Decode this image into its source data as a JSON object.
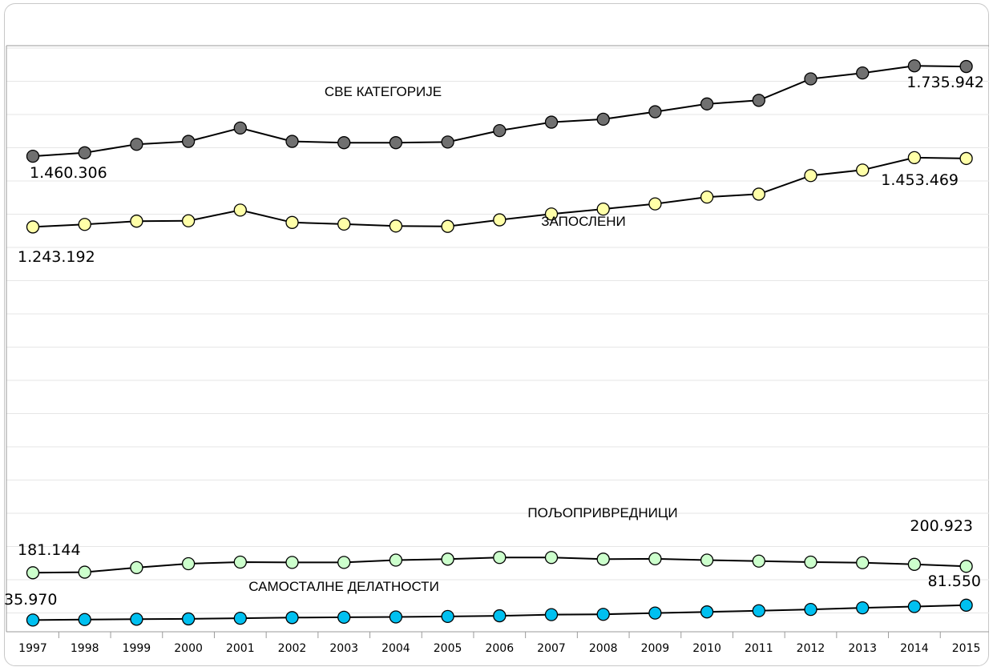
{
  "chart_data": {
    "type": "line",
    "x": [
      "1997",
      "1998",
      "1999",
      "2000",
      "2001",
      "2002",
      "2003",
      "2004",
      "2005",
      "2006",
      "2007",
      "2008",
      "2009",
      "2010",
      "2011",
      "2012",
      "2013",
      "2014",
      "2015"
    ],
    "ylim": [
      0,
      1800000
    ],
    "grid": true,
    "legend": "none",
    "series": [
      {
        "name": "СВЕ КАТЕГОРИЈЕ",
        "color": "#707070",
        "values": [
          1460306,
          1471000,
          1497000,
          1506000,
          1547000,
          1506000,
          1502000,
          1502000,
          1504000,
          1539000,
          1565000,
          1574000,
          1597000,
          1621000,
          1632000,
          1698000,
          1716000,
          1738000,
          1735942
        ],
        "first_label": "1.460.306",
        "last_label": "1.735.942"
      },
      {
        "name": "ЗАПОСЛЕНИ",
        "color": "#ffffa8",
        "values": [
          1243192,
          1251000,
          1261000,
          1262000,
          1295000,
          1257000,
          1252000,
          1246000,
          1245000,
          1265000,
          1283000,
          1298000,
          1314000,
          1335000,
          1344000,
          1401000,
          1418000,
          1456000,
          1453469
        ],
        "first_label": "1.243.192",
        "last_label": "1.453.469"
      },
      {
        "name": "ПОЉОПРИВРЕДНИЦИ",
        "color": "#ccffcc",
        "values": [
          181144,
          183000,
          197000,
          209000,
          214000,
          213000,
          213000,
          220000,
          223000,
          228000,
          228000,
          223000,
          224000,
          220000,
          217000,
          214000,
          212000,
          207000,
          200923
        ],
        "first_label": "181.144",
        "last_label": "200.923"
      },
      {
        "name": "САМОСТАЛНЕ ДЕЛАТНОСТИ",
        "color": "#00c0f0",
        "values": [
          35970,
          37500,
          38500,
          39500,
          41500,
          43500,
          44500,
          45500,
          47000,
          49000,
          52500,
          53500,
          57500,
          61000,
          64500,
          68500,
          73500,
          77500,
          81550
        ],
        "first_label": "35.970",
        "last_label": "81.550"
      }
    ]
  }
}
